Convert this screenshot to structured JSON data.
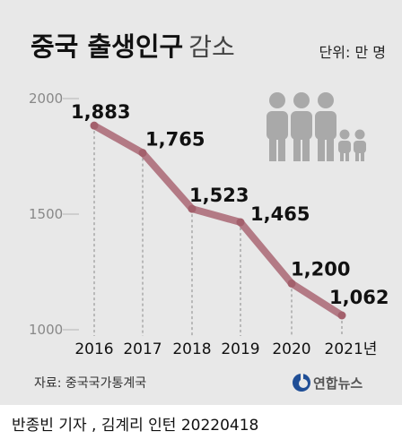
{
  "title": {
    "bold": "중국 출생인구",
    "light": "감소"
  },
  "unit_label": "단위: 만 명",
  "source": "자료: 중국국가통계국",
  "logo": "연합뉴스",
  "credit": "반종빈 기자 , 김계리 인턴  20220418",
  "chart_data": {
    "type": "line",
    "title": "중국 출생인구 감소",
    "unit": "단위: 만 명",
    "categories": [
      "2016",
      "2017",
      "2018",
      "2019",
      "2020",
      "2021년"
    ],
    "values": [
      1883,
      1765,
      1523,
      1465,
      1200,
      1062
    ],
    "value_labels": [
      "1,883",
      "1,765",
      "1,523",
      "1,465",
      "1,200",
      "1,062"
    ],
    "yticks": [
      2000,
      1500,
      1000
    ],
    "ylim": [
      1000,
      2000
    ],
    "grid": false
  },
  "colors": {
    "background": "#e8e8e8",
    "line": "#b37a85",
    "marker": "#a3606c",
    "people_icon": "#a9a9a9"
  }
}
